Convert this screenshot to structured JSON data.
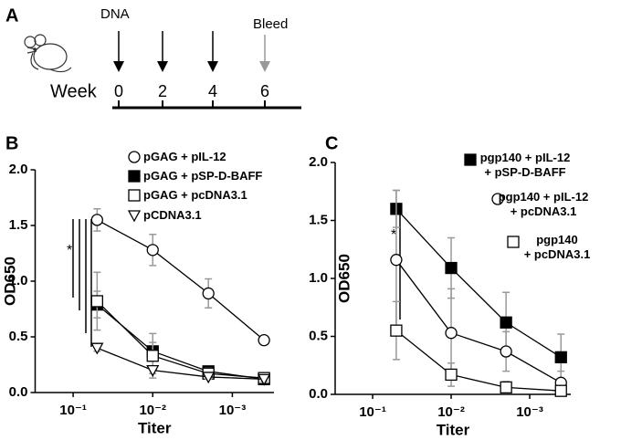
{
  "timeline": {
    "panel": "A",
    "first_label": "DNA",
    "last_label": "Bleed",
    "axis_label": "Week",
    "weeks": [
      0,
      2,
      4,
      6
    ]
  },
  "chart_data": [
    {
      "type": "line",
      "panel": "B",
      "xlabel": "Titer",
      "ylabel": "OD650",
      "annotation": "*",
      "log_x": true,
      "x": [
        0.05,
        0.01,
        0.002,
        0.0004
      ],
      "xlim": [
        0.3,
        0.0003
      ],
      "xticks": [
        {
          "value": 0.1,
          "label": "10⁻¹"
        },
        {
          "value": 0.01,
          "label": "10⁻²"
        },
        {
          "value": 0.001,
          "label": "10⁻³"
        }
      ],
      "ylim": [
        0,
        2
      ],
      "yticks": [
        {
          "value": 0,
          "label": "0.0"
        },
        {
          "value": 0.5,
          "label": "0.5"
        },
        {
          "value": 1,
          "label": "1.0"
        },
        {
          "value": 1.5,
          "label": "1.5"
        },
        {
          "value": 2,
          "label": "2.0"
        }
      ],
      "series": [
        {
          "name": "pGAG + pIL-12",
          "color": "#000000",
          "marker": "circle",
          "filled": false,
          "values": [
            1.55,
            1.28,
            0.89,
            0.47
          ],
          "errors": [
            0.1,
            0.14,
            0.13,
            0.04
          ]
        },
        {
          "name": "pGAG + pSP-D-BAFF",
          "color": "#000000",
          "marker": "square",
          "filled": true,
          "values": [
            0.79,
            0.37,
            0.19,
            0.12
          ],
          "errors": [
            0.12,
            0.08,
            0.03,
            0.02
          ]
        },
        {
          "name": "pGAG + pcDNA3.1",
          "color": "#000000",
          "marker": "square",
          "filled": false,
          "values": [
            0.82,
            0.33,
            0.17,
            0.13
          ],
          "errors": [
            0.26,
            0.2,
            0.05,
            0.03
          ]
        },
        {
          "name": "pCDNA3.1",
          "color": "#000000",
          "marker": "triangle",
          "filled": false,
          "values": [
            0.4,
            0.2,
            0.14,
            0.12
          ],
          "errors": [
            0.03,
            0.03,
            0.02,
            0.02
          ]
        }
      ]
    },
    {
      "type": "line",
      "panel": "C",
      "xlabel": "Titer",
      "ylabel": "OD650",
      "annotation": "*",
      "log_x": true,
      "x": [
        0.05,
        0.01,
        0.002,
        0.0004
      ],
      "xlim": [
        0.3,
        0.0003
      ],
      "xticks": [
        {
          "value": 0.1,
          "label": "10⁻¹"
        },
        {
          "value": 0.01,
          "label": "10⁻²"
        },
        {
          "value": 0.001,
          "label": "10⁻³"
        }
      ],
      "ylim": [
        0,
        2
      ],
      "yticks": [
        {
          "value": 0,
          "label": "0.0"
        },
        {
          "value": 0.5,
          "label": "0.5"
        },
        {
          "value": 1,
          "label": "1.0"
        },
        {
          "value": 1.5,
          "label": "1.5"
        },
        {
          "value": 2,
          "label": "2.0"
        }
      ],
      "series": [
        {
          "name": "pgp140 + pIL-12\n+ pSP-D-BAFF",
          "color": "#000000",
          "marker": "square",
          "filled": true,
          "values": [
            1.6,
            1.09,
            0.62,
            0.32
          ],
          "errors": [
            0.16,
            0.26,
            0.26,
            0.2
          ]
        },
        {
          "name": "pgp140 + pIL-12\n+ pcDNA3.1",
          "color": "#000000",
          "marker": "circle",
          "filled": false,
          "values": [
            1.16,
            0.53,
            0.37,
            0.1
          ],
          "errors": [
            0.6,
            0.38,
            0.17,
            0.1
          ]
        },
        {
          "name": "pgp140\n+ pcDNA3.1",
          "color": "#000000",
          "marker": "square",
          "filled": false,
          "values": [
            0.55,
            0.17,
            0.06,
            0.03
          ],
          "errors": [
            0.25,
            0.1,
            0.05,
            0.03
          ]
        }
      ]
    }
  ]
}
